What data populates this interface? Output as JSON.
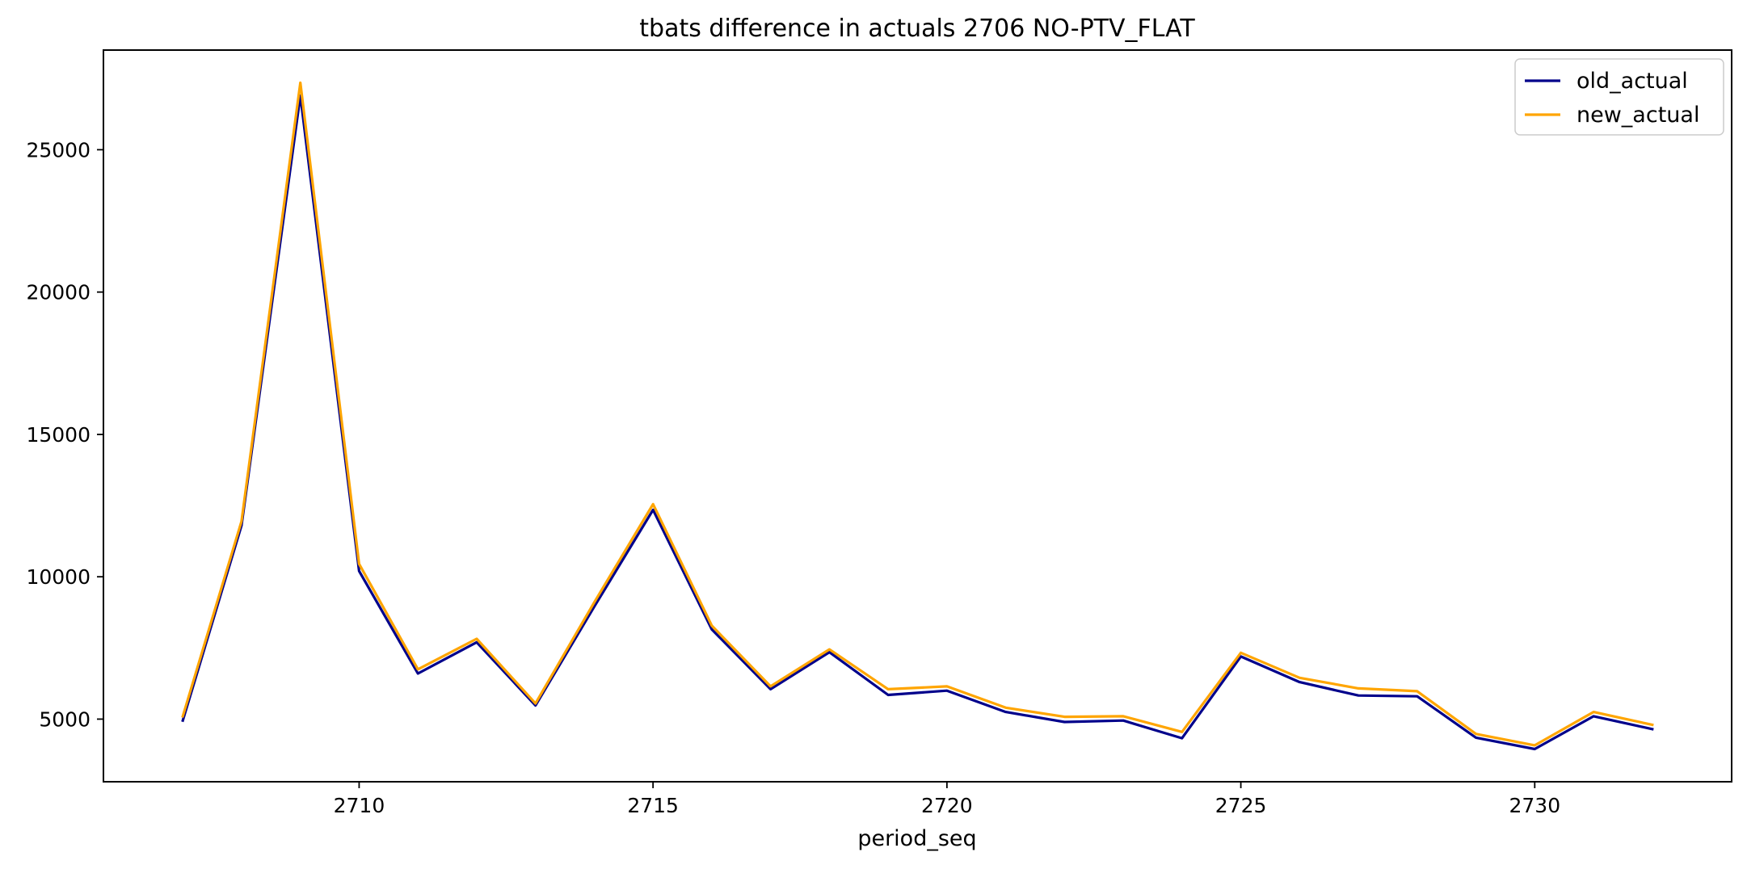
{
  "chart_data": {
    "type": "line",
    "title": "tbats difference in actuals 2706 NO-PTV_FLAT",
    "xlabel": "period_seq",
    "ylabel": "",
    "x": [
      2707,
      2708,
      2709,
      2710,
      2711,
      2712,
      2713,
      2714,
      2715,
      2716,
      2717,
      2718,
      2719,
      2720,
      2721,
      2722,
      2723,
      2724,
      2725,
      2726,
      2727,
      2728,
      2729,
      2730,
      2731,
      2732
    ],
    "series": [
      {
        "name": "old_actual",
        "color": "#00008b",
        "values": [
          4950,
          11800,
          26900,
          10200,
          6600,
          7700,
          5480,
          8950,
          12350,
          8150,
          6050,
          7350,
          5850,
          6000,
          5250,
          4900,
          4950,
          4330,
          7200,
          6300,
          5830,
          5800,
          4350,
          3950,
          5100,
          4650
        ]
      },
      {
        "name": "new_actual",
        "color": "#ffa500",
        "values": [
          5100,
          11950,
          27350,
          10450,
          6750,
          7820,
          5550,
          9100,
          12550,
          8280,
          6150,
          7450,
          6050,
          6150,
          5400,
          5080,
          5100,
          4550,
          7330,
          6450,
          6080,
          5980,
          4480,
          4080,
          5250,
          4800
        ]
      }
    ],
    "xticks": [
      "2710",
      "2715",
      "2720",
      "2725",
      "2730"
    ],
    "yticks": [
      "5000",
      "10000",
      "15000",
      "20000",
      "25000"
    ],
    "xlim": [
      2705.65,
      2733.35
    ],
    "ylim": [
      2800,
      28500
    ],
    "grid": false,
    "legend_position": "top-right"
  }
}
